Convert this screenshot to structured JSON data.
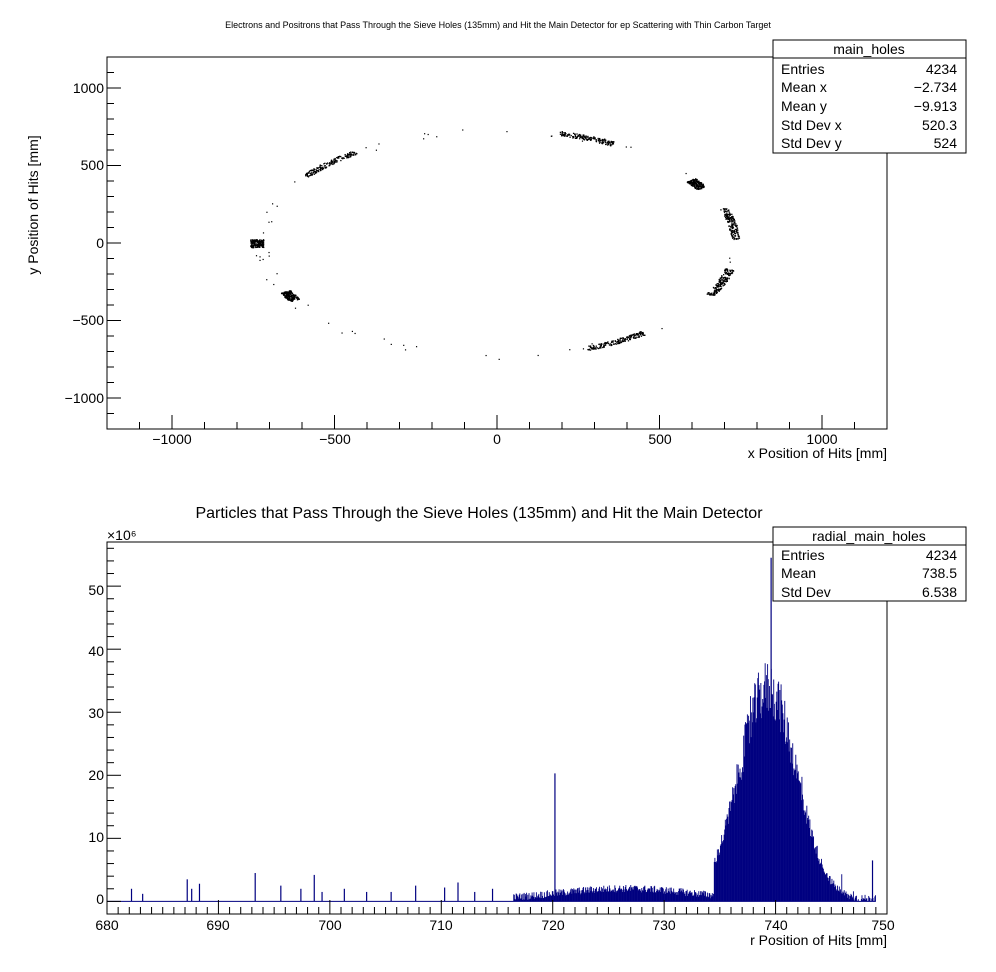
{
  "chart_data": [
    {
      "type": "scatter",
      "title": "Electrons and Positrons that Pass Through the Sieve Holes (135mm) and Hit the Main Detector for ep Scattering with Thin Carbon Target",
      "xlabel": "x Position of Hits [mm]",
      "ylabel": "y Position of Hits [mm]",
      "xlim": [
        -1200,
        1200
      ],
      "ylim": [
        -1200,
        1200
      ],
      "x_ticks": [
        -1000,
        -500,
        0,
        500,
        1000
      ],
      "x_tick_labels": [
        "−1000",
        "−500",
        "0",
        "500",
        "1000"
      ],
      "y_ticks": [
        -1000,
        -500,
        0,
        500,
        1000
      ],
      "y_tick_labels": [
        "−1000",
        "−500",
        "0",
        "500",
        "1000"
      ],
      "grid": false,
      "marker_color": "#000000",
      "stats": {
        "name": "main_holes",
        "rows": [
          {
            "label": "Entries",
            "value": "4234"
          },
          {
            "label": "Mean x",
            "value": "−2.734"
          },
          {
            "label": "Mean y",
            "value": "−9.913"
          },
          {
            "label": "Std Dev x",
            "value": "520.3"
          },
          {
            "label": "Std Dev y",
            "value": "524"
          }
        ]
      },
      "clusters": [
        {
          "phi_deg": 10,
          "spread_deg": 16,
          "r_min": 720,
          "r_max": 745
        },
        {
          "phi_deg": 32,
          "spread_deg": 5,
          "r_min": 705,
          "r_max": 740
        },
        {
          "phi_deg": 68,
          "spread_deg": 14,
          "r_min": 720,
          "r_max": 750
        },
        {
          "phi_deg": 135,
          "spread_deg": 17,
          "r_min": 720,
          "r_max": 745
        },
        {
          "phi_deg": 180,
          "spread_deg": 4,
          "r_min": 720,
          "r_max": 760
        },
        {
          "phi_deg": 208,
          "spread_deg": 5,
          "r_min": 705,
          "r_max": 740
        },
        {
          "phi_deg": 300,
          "spread_deg": 16,
          "r_min": 718,
          "r_max": 745
        },
        {
          "phi_deg": 340,
          "spread_deg": 14,
          "r_min": 720,
          "r_max": 748
        }
      ]
    },
    {
      "type": "histogram",
      "title": "Particles that Pass Through the Sieve Holes (135mm) and Hit the Main Detector",
      "xlabel": "r Position of Hits [mm]",
      "ylabel": "",
      "y_multiplier": "×10⁶",
      "xlim": [
        680,
        750
      ],
      "ylim": [
        -2,
        57
      ],
      "x_ticks": [
        680,
        690,
        700,
        710,
        720,
        730,
        740,
        750
      ],
      "y_ticks": [
        0,
        10,
        20,
        30,
        40,
        50
      ],
      "grid": false,
      "line_color": "#000080",
      "stats": {
        "name": "radial_main_holes",
        "rows": [
          {
            "label": "Entries",
            "value": "4234"
          },
          {
            "label": "Mean",
            "value": "738.5"
          },
          {
            "label": "Std Dev",
            "value": "6.538"
          }
        ]
      },
      "spikes": [
        {
          "x": 682.2,
          "y": 2
        },
        {
          "x": 683.2,
          "y": 1.2
        },
        {
          "x": 687.2,
          "y": 3.5
        },
        {
          "x": 687.6,
          "y": 2
        },
        {
          "x": 688.3,
          "y": 2.8
        },
        {
          "x": 693.3,
          "y": 4.5
        },
        {
          "x": 695.6,
          "y": 2.5
        },
        {
          "x": 697.4,
          "y": 2
        },
        {
          "x": 698.6,
          "y": 4.2
        },
        {
          "x": 699.3,
          "y": 1.5
        },
        {
          "x": 701.3,
          "y": 2
        },
        {
          "x": 703.3,
          "y": 1.5
        },
        {
          "x": 705.5,
          "y": 1.5
        },
        {
          "x": 707.7,
          "y": 2.5
        },
        {
          "x": 710.3,
          "y": 2.2
        },
        {
          "x": 711.5,
          "y": 3
        },
        {
          "x": 713.0,
          "y": 1.5
        },
        {
          "x": 714.6,
          "y": 2
        },
        {
          "x": 720.2,
          "y": 20.3
        }
      ],
      "bulk": [
        {
          "x0": 716.5,
          "x1": 734.5,
          "peak_x": 726.5,
          "amp": 1.8,
          "noise": 1.2
        },
        {
          "x0": 734.5,
          "x1": 749,
          "peak_x": 739.3,
          "amp": 32,
          "width": 2.6,
          "noise": 9
        }
      ]
    }
  ]
}
